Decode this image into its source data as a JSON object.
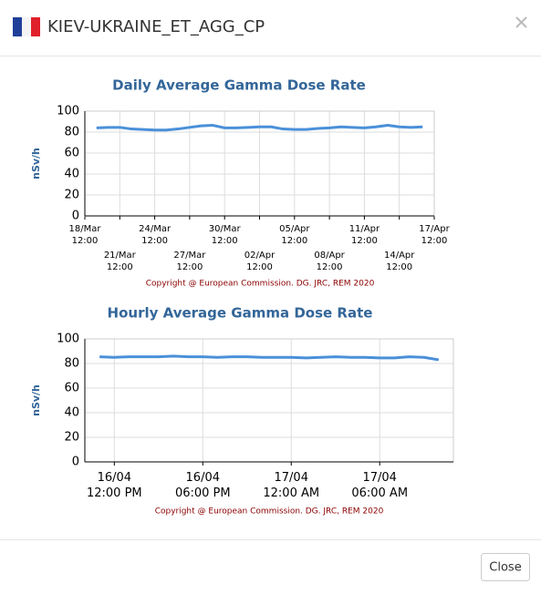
{
  "header": {
    "title": "KIEV-UKRAINE_ET_AGG_CP"
  },
  "footer": {
    "button": "Close"
  },
  "chart_data": [
    {
      "type": "line",
      "title": "Daily Average Gamma Dose Rate",
      "y_label": "nSv/h",
      "note": "Copyright @ European Commission. DG. JRC, REM 2020",
      "categories": [
        "18/Mar 12:00",
        null,
        null,
        "21/Mar 12:00",
        null,
        null,
        "24/Mar 12:00",
        null,
        null,
        "27/Mar 12:00",
        null,
        null,
        "30/Mar 12:00",
        null,
        null,
        "02/Apr 12:00",
        null,
        null,
        "05/Apr 12:00",
        null,
        null,
        "08/Apr 12:00",
        null,
        null,
        "11/Apr 12:00",
        null,
        null,
        "14/Apr 12:00",
        null,
        null,
        "17/Apr 12:00"
      ],
      "values": [
        null,
        84,
        84.5,
        84.5,
        83,
        82.5,
        82,
        82,
        83,
        84.5,
        86,
        86.5,
        84,
        84,
        84.5,
        85,
        85,
        83,
        82.5,
        82.5,
        83.5,
        84,
        85,
        84.5,
        84,
        85,
        86.5,
        85,
        84.5,
        85,
        null
      ],
      "color": "#4a90d9",
      "ylim": [
        0,
        100
      ],
      "yticks": [
        0,
        20,
        40,
        60,
        80,
        100
      ],
      "grid": true
    },
    {
      "type": "line",
      "title": "Hourly Average Gamma Dose Rate",
      "y_label": "nSv/h",
      "note": "Copyright @ European Commission. DG. JRC, REM 2020",
      "categories": [
        null,
        "16/04 12:00 PM",
        null,
        null,
        null,
        null,
        null,
        "16/04 06:00 PM",
        null,
        null,
        null,
        null,
        null,
        "17/04 12:00 AM",
        null,
        null,
        null,
        null,
        null,
        "17/04 06:00 AM",
        null,
        null,
        null,
        null
      ],
      "values": [
        85.5,
        85,
        85.5,
        85.5,
        85.5,
        86,
        85.5,
        85.5,
        85,
        85.5,
        85.5,
        85,
        85,
        85,
        84.5,
        85,
        85.5,
        85,
        85,
        84.5,
        84.5,
        85.5,
        85,
        83
      ],
      "color": "#4a90d9",
      "ylim": [
        0,
        100
      ],
      "yticks": [
        0,
        20,
        40,
        60,
        80,
        100
      ],
      "grid": true
    }
  ]
}
